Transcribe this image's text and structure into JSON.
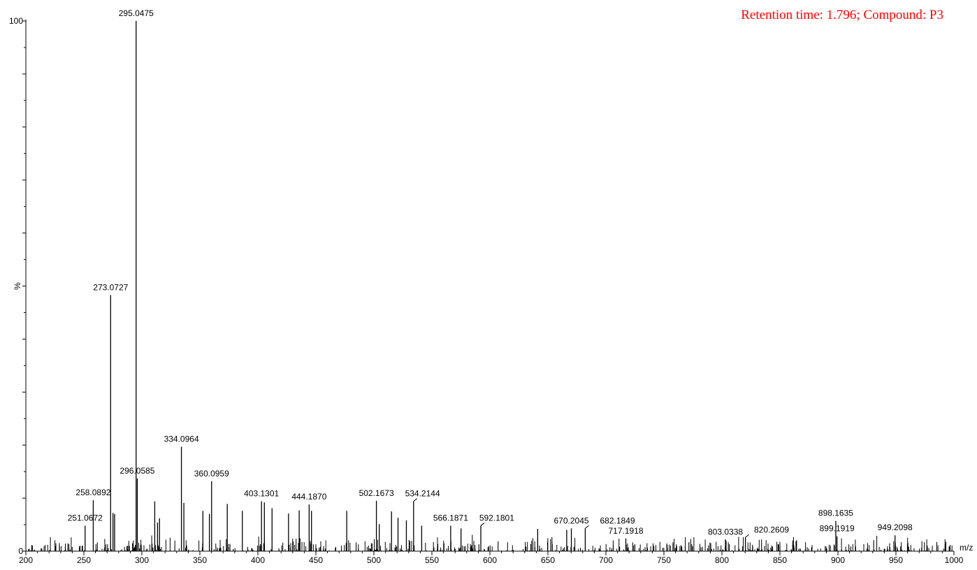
{
  "header": {
    "text": "Retention time: 1.796; Compound: P3",
    "color": "#ff0000"
  },
  "chart_data": {
    "type": "bar",
    "subtype": "mass-spectrum-stick",
    "title": "",
    "xlabel": "m/z",
    "ylabel": "%",
    "xlim": [
      200,
      1000
    ],
    "ylim": [
      0,
      100
    ],
    "x_ticks": [
      200,
      250,
      300,
      350,
      400,
      450,
      500,
      550,
      600,
      650,
      700,
      750,
      800,
      850,
      900,
      950,
      1000
    ],
    "y_ticks_labeled": [
      0,
      100
    ],
    "y_tick_step": 10,
    "grid": false,
    "line_color": "#000000",
    "labeled_peaks": [
      {
        "mz": 251.0672,
        "intensity": 4.8,
        "label": "251.0672"
      },
      {
        "mz": 258.0892,
        "intensity": 9.6,
        "label": "258.0892"
      },
      {
        "mz": 273.0727,
        "intensity": 48.3,
        "label": "273.0727"
      },
      {
        "mz": 295.0475,
        "intensity": 100,
        "label": "295.0475"
      },
      {
        "mz": 296.0585,
        "intensity": 13.7,
        "label": "296.0585"
      },
      {
        "mz": 334.0964,
        "intensity": 19.7,
        "label": "334.0964"
      },
      {
        "mz": 360.0959,
        "intensity": 13.2,
        "label": "360.0959"
      },
      {
        "mz": 403.1301,
        "intensity": 9.4,
        "label": "403.1301"
      },
      {
        "mz": 444.187,
        "intensity": 8.8,
        "label": "444.1870"
      },
      {
        "mz": 502.1673,
        "intensity": 9.5,
        "label": "502.1673"
      },
      {
        "mz": 534.2144,
        "intensity": 9.4,
        "label": "534.2144"
      },
      {
        "mz": 566.1871,
        "intensity": 4.8,
        "label": "566.1871"
      },
      {
        "mz": 592.1801,
        "intensity": 4.8,
        "label": "592.1801"
      },
      {
        "mz": 670.2045,
        "intensity": 4.3,
        "label": "670.2045"
      },
      {
        "mz": 682.1849,
        "intensity": 4.3,
        "label": "682.1849"
      },
      {
        "mz": 717.1918,
        "intensity": 2.4,
        "label": "717.1918"
      },
      {
        "mz": 803.0338,
        "intensity": 2.2,
        "label": "803.0338"
      },
      {
        "mz": 820.2609,
        "intensity": 2.6,
        "label": "820.2609"
      },
      {
        "mz": 898.1635,
        "intensity": 5.7,
        "label": "898.1635"
      },
      {
        "mz": 899.1919,
        "intensity": 2.8,
        "label": "899.1919"
      },
      {
        "mz": 949.2098,
        "intensity": 3.0,
        "label": "949.2098"
      }
    ],
    "unlabeled_peaks": [
      {
        "mz": 275.1,
        "intensity": 7.2
      },
      {
        "mz": 276.5,
        "intensity": 7.0
      },
      {
        "mz": 311.1,
        "intensity": 9.4
      },
      {
        "mz": 313.5,
        "intensity": 5.4
      },
      {
        "mz": 315.2,
        "intensity": 6.2
      },
      {
        "mz": 336.2,
        "intensity": 9.1
      },
      {
        "mz": 352.6,
        "intensity": 7.6
      },
      {
        "mz": 358.2,
        "intensity": 7.0
      },
      {
        "mz": 373.6,
        "intensity": 8.9
      },
      {
        "mz": 386.6,
        "intensity": 7.6
      },
      {
        "mz": 405.6,
        "intensity": 9.2
      },
      {
        "mz": 412.2,
        "intensity": 8.1
      },
      {
        "mz": 426.4,
        "intensity": 7.1
      },
      {
        "mz": 435.6,
        "intensity": 7.7
      },
      {
        "mz": 446.2,
        "intensity": 7.6
      },
      {
        "mz": 476.6,
        "intensity": 7.6
      },
      {
        "mz": 504.6,
        "intensity": 5.1
      },
      {
        "mz": 515.2,
        "intensity": 7.5
      },
      {
        "mz": 520.8,
        "intensity": 6.3
      },
      {
        "mz": 528.0,
        "intensity": 5.8
      },
      {
        "mz": 541.2,
        "intensity": 4.8
      },
      {
        "mz": 575.1,
        "intensity": 4.3
      },
      {
        "mz": 641.2,
        "intensity": 4.2
      },
      {
        "mz": 666.2,
        "intensity": 4.0
      }
    ],
    "noise": {
      "mz_min": 200,
      "mz_max": 1000,
      "count": 780,
      "max_intensity": 3.2
    }
  }
}
